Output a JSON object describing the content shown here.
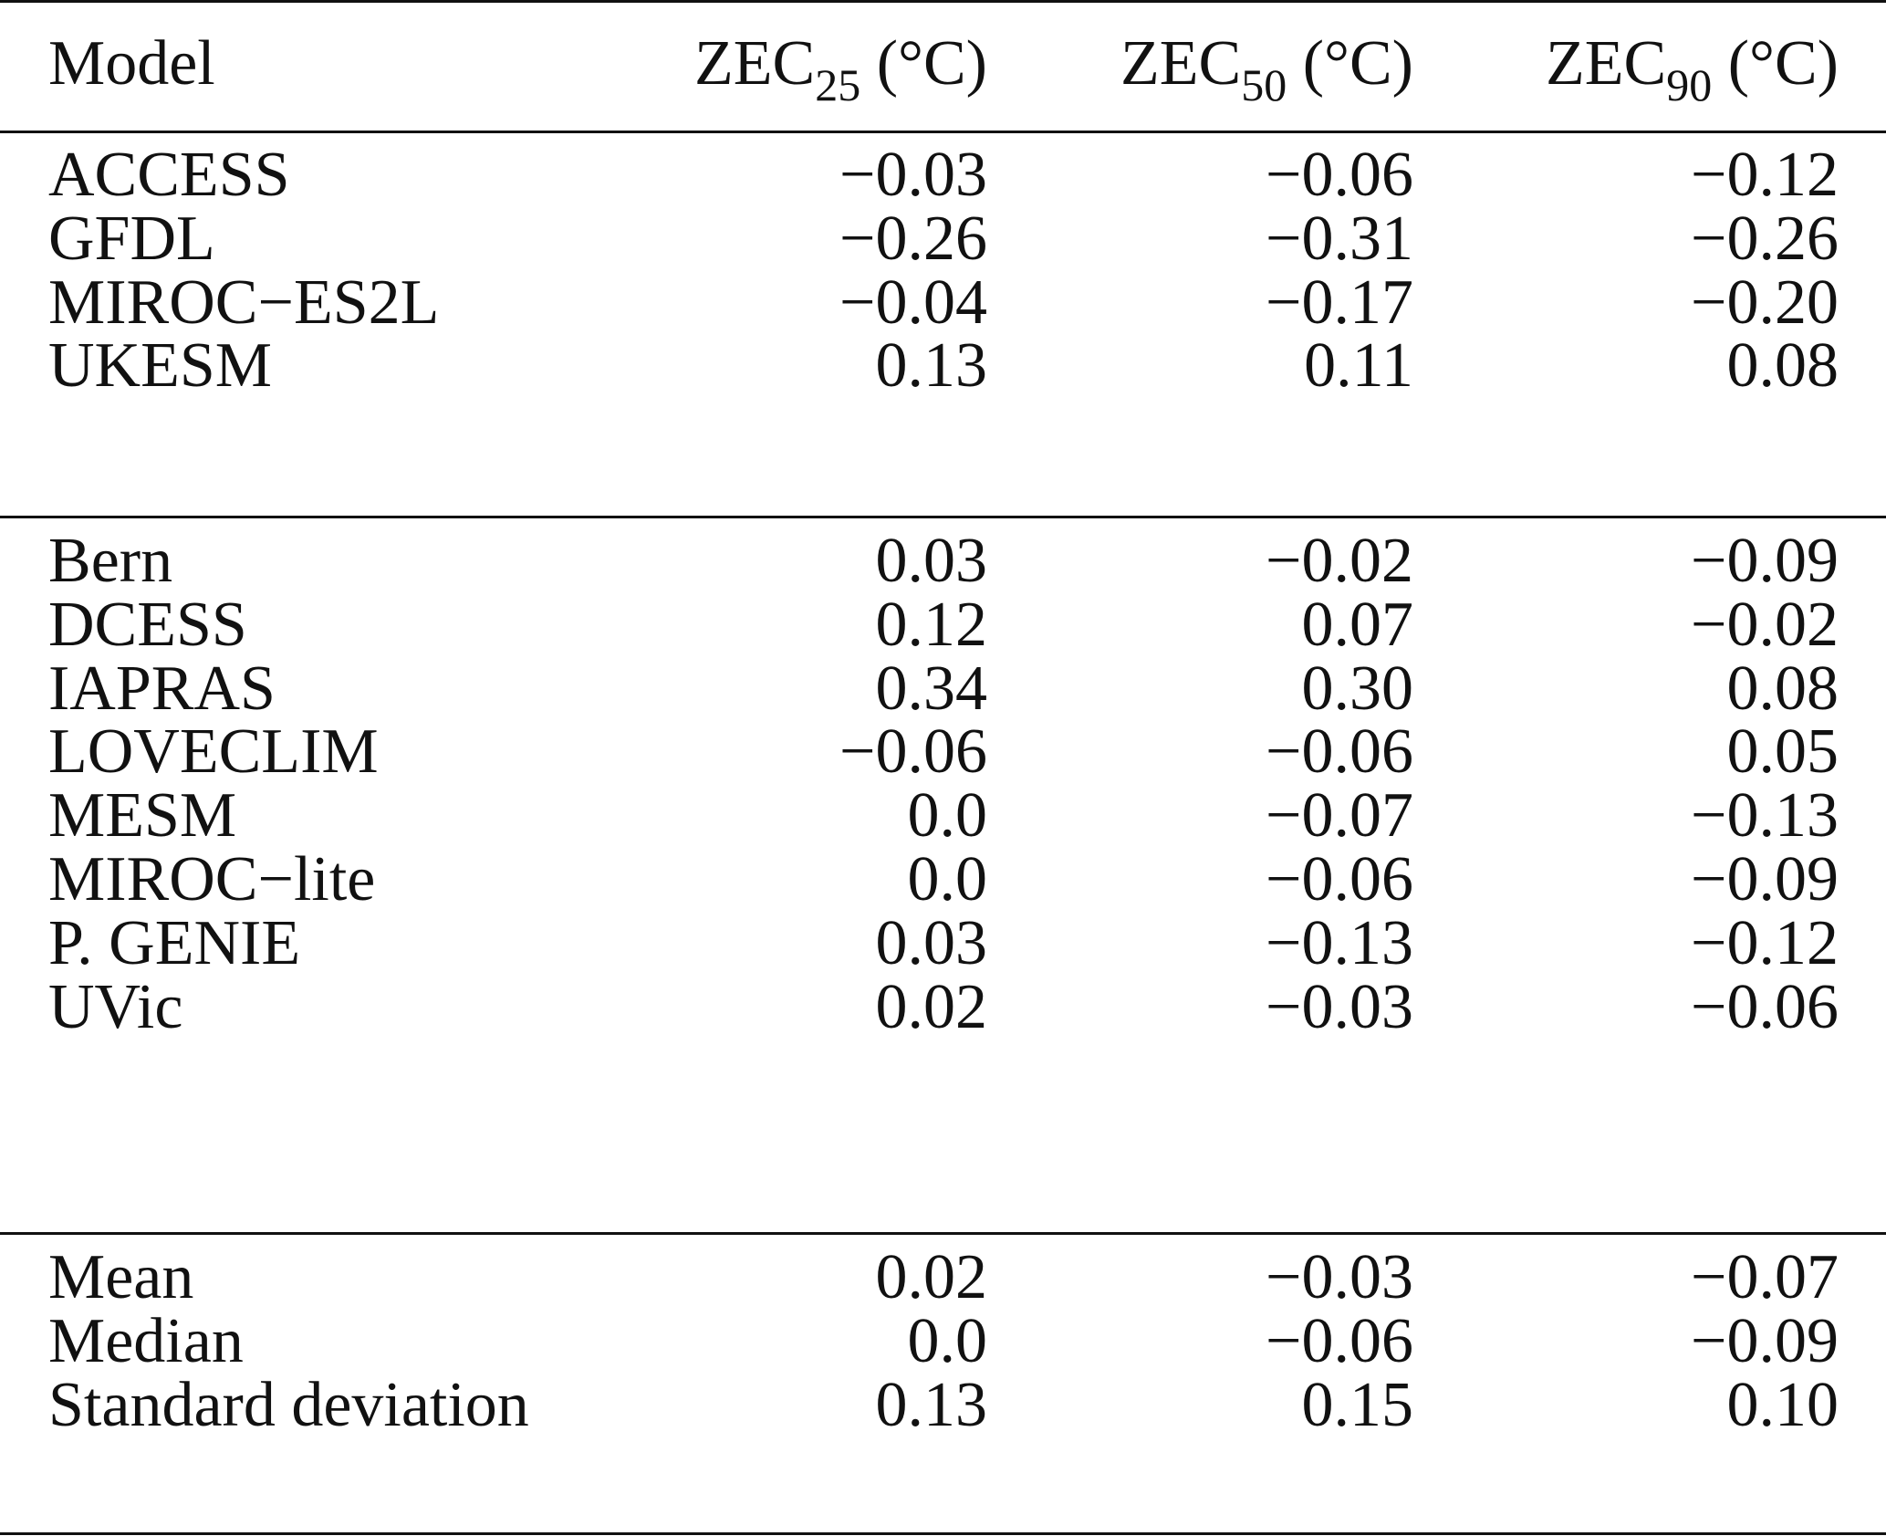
{
  "table": {
    "header": {
      "model": "Model",
      "zec25": {
        "base": "ZEC",
        "sub": "25",
        "unit": " (°C)"
      },
      "zec50": {
        "base": "ZEC",
        "sub": "50",
        "unit": " (°C)"
      },
      "zec90": {
        "base": "ZEC",
        "sub": "90",
        "unit": " (°C)"
      }
    },
    "group1": [
      {
        "model": "ACCESS",
        "zec25": "−0.03",
        "zec50": "−0.06",
        "zec90": "−0.12"
      },
      {
        "model": "GFDL",
        "zec25": "−0.26",
        "zec50": "−0.31",
        "zec90": "−0.26"
      },
      {
        "model": "MIROC−ES2L",
        "zec25": "−0.04",
        "zec50": "−0.17",
        "zec90": "−0.20"
      },
      {
        "model": "UKESM",
        "zec25": "0.13",
        "zec50": "0.11",
        "zec90": "0.08"
      }
    ],
    "group2": [
      {
        "model": "Bern",
        "zec25": "0.03",
        "zec50": "−0.02",
        "zec90": "−0.09"
      },
      {
        "model": "DCESS",
        "zec25": "0.12",
        "zec50": "0.07",
        "zec90": "−0.02"
      },
      {
        "model": "IAPRAS",
        "zec25": "0.34",
        "zec50": "0.30",
        "zec90": "0.08"
      },
      {
        "model": "LOVECLIM",
        "zec25": "−0.06",
        "zec50": "−0.06",
        "zec90": "0.05"
      },
      {
        "model": "MESM",
        "zec25": "0.0",
        "zec50": "−0.07",
        "zec90": "−0.13"
      },
      {
        "model": "MIROC−lite",
        "zec25": "0.0",
        "zec50": "−0.06",
        "zec90": "−0.09"
      },
      {
        "model": "P. GENIE",
        "zec25": "0.03",
        "zec50": "−0.13",
        "zec90": "−0.12"
      },
      {
        "model": "UVic",
        "zec25": "0.02",
        "zec50": "−0.03",
        "zec90": "−0.06"
      }
    ],
    "summary": [
      {
        "model": "Mean",
        "zec25": "0.02",
        "zec50": "−0.03",
        "zec90": "−0.07"
      },
      {
        "model": "Median",
        "zec25": "0.0",
        "zec50": "−0.06",
        "zec90": "−0.09"
      },
      {
        "model": "Standard deviation",
        "zec25": "0.13",
        "zec50": "0.15",
        "zec90": "0.10"
      }
    ]
  }
}
